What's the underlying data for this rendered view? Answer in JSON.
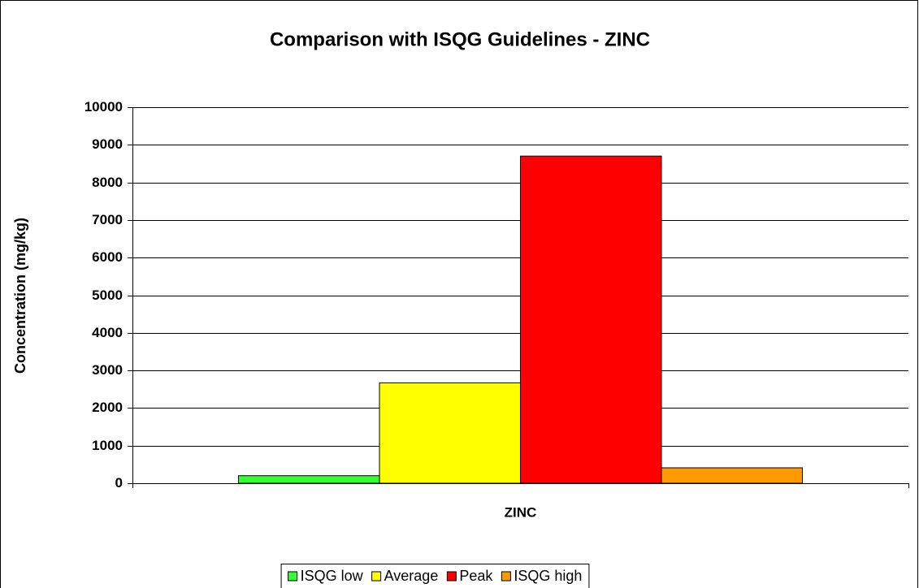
{
  "chart_data": {
    "type": "bar",
    "title": "Comparison with ISQG Guidelines - ZINC",
    "y_label": "Concentration (mg/kg)",
    "categories": [
      "ZINC"
    ],
    "series": [
      {
        "name": "ISQG low",
        "color": "#33ff33",
        "values": [
          200
        ]
      },
      {
        "name": "Average",
        "color": "#ffff00",
        "values": [
          2670
        ]
      },
      {
        "name": "Peak",
        "color": "#ff0000",
        "values": [
          8700
        ]
      },
      {
        "name": "ISQG high",
        "color": "#ff9900",
        "values": [
          410
        ]
      }
    ],
    "ylim": [
      0,
      10000
    ],
    "yticks": [
      0,
      1000,
      2000,
      3000,
      4000,
      5000,
      6000,
      7000,
      8000,
      9000,
      10000
    ],
    "grid": true,
    "legend": "bottom"
  }
}
